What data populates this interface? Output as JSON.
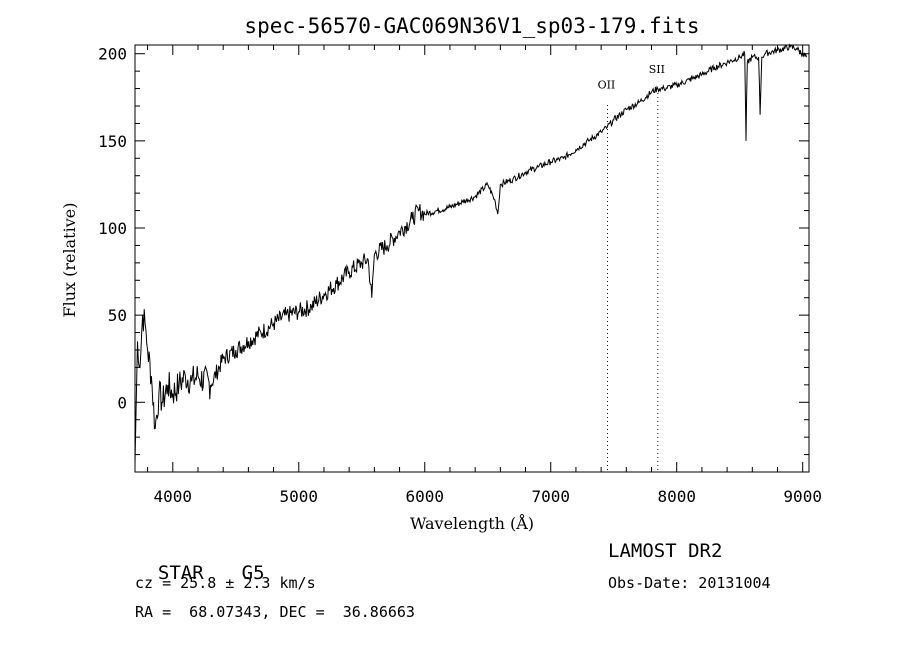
{
  "chart_data": {
    "type": "line",
    "title": "spec-56570-GAC069N36V1_sp03-179.fits",
    "xlabel": "Wavelength (Å)",
    "ylabel": "Flux (relative)",
    "xlim": [
      3700,
      9050
    ],
    "ylim": [
      -40,
      205
    ],
    "x_ticks": [
      4000,
      5000,
      6000,
      7000,
      8000,
      9000
    ],
    "y_ticks": [
      0,
      50,
      100,
      150,
      200
    ],
    "grid": false,
    "legend": "none",
    "series": [
      {
        "x": [
          3700,
          3720,
          3740,
          3760,
          3780,
          3800,
          3830,
          3860,
          3890,
          3920,
          3960,
          4000,
          4050,
          4100,
          4150,
          4200,
          4300,
          4400,
          4500,
          4600,
          4700,
          4800,
          4900,
          5000,
          5100,
          5200,
          5300,
          5400,
          5500,
          5550,
          5580,
          5600,
          5700,
          5800,
          5900,
          5950,
          6000,
          6100,
          6200,
          6300,
          6400,
          6500,
          6560,
          6580,
          6600,
          6700,
          6800,
          6900,
          7000,
          7100,
          7200,
          7300,
          7400,
          7450,
          7500,
          7600,
          7700,
          7800,
          7850,
          7900,
          8000,
          8100,
          8200,
          8300,
          8400,
          8500,
          8540,
          8550,
          8560,
          8600,
          8650,
          8662,
          8675,
          8700,
          8800,
          8900,
          8950,
          9000,
          9030
        ],
        "y": [
          -35,
          35,
          20,
          50,
          45,
          30,
          15,
          -15,
          5,
          0,
          10,
          5,
          10,
          15,
          12,
          15,
          10,
          25,
          30,
          35,
          40,
          45,
          50,
          52,
          55,
          62,
          68,
          75,
          80,
          82,
          60,
          85,
          90,
          98,
          105,
          110,
          108,
          110,
          112,
          115,
          118,
          125,
          115,
          108,
          125,
          128,
          132,
          135,
          138,
          140,
          145,
          150,
          155,
          158,
          162,
          168,
          172,
          178,
          180,
          180,
          182,
          185,
          188,
          192,
          195,
          198,
          200,
          150,
          195,
          198,
          198,
          165,
          198,
          200,
          202,
          204,
          203,
          200,
          198
        ],
        "color": "#000000"
      }
    ],
    "annotations": [
      {
        "label": "OII",
        "x": 7450
      },
      {
        "label": "SII",
        "x": 7850
      }
    ]
  },
  "info": {
    "object_type": "STAR",
    "subclass": "G5",
    "survey": "LAMOST DR2",
    "cz": "cz = 25.8 ± 2.3 km/s",
    "obs_date": "Obs-Date: 20131004",
    "coords": "RA =  68.07343, DEC =  36.86663"
  }
}
